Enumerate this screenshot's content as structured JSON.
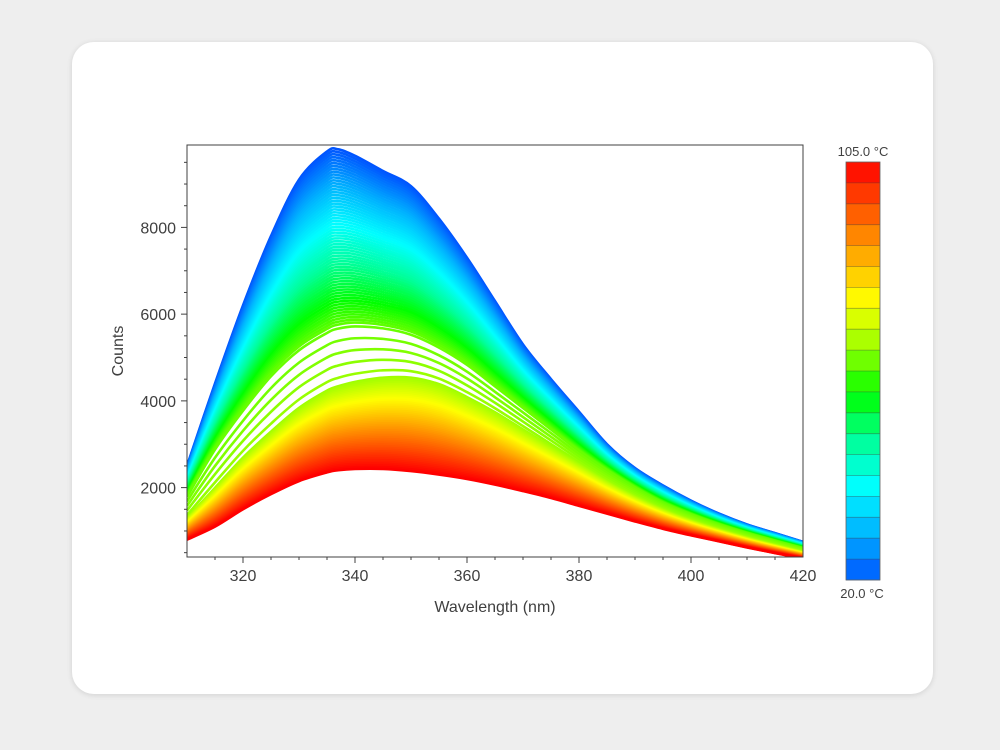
{
  "chart_data": {
    "type": "line",
    "title": "",
    "xlabel": "Wavelength (nm)",
    "ylabel": "Counts",
    "xlim": [
      310,
      420
    ],
    "ylim": [
      400,
      9900
    ],
    "x_ticks": [
      320,
      340,
      360,
      380,
      400,
      420
    ],
    "y_ticks": [
      2000,
      4000,
      6000,
      8000
    ],
    "grid": false,
    "legend": "none",
    "colorbar": {
      "min_label": "20.0 °C",
      "max_label": "105.0 °C",
      "placement": "right",
      "min_temp": 20.0,
      "max_temp": 105.0,
      "segments": 20,
      "colormap": [
        "#0055ff",
        "#00b4ff",
        "#00ffff",
        "#00ff99",
        "#00ff00",
        "#99ff00",
        "#ffff00",
        "#ffaa00",
        "#ff5500",
        "#ff0000"
      ]
    },
    "series_count": 120,
    "spectrum_profile": {
      "x": [
        310,
        315,
        320,
        325,
        330,
        335,
        337,
        340,
        345,
        350,
        355,
        360,
        365,
        370,
        375,
        380,
        385,
        390,
        395,
        400,
        405,
        410,
        415,
        420
      ],
      "y_lowest_temp": [
        2500,
        4400,
        6200,
        7800,
        9100,
        9750,
        9800,
        9650,
        9300,
        8950,
        8200,
        7300,
        6300,
        5300,
        4500,
        3750,
        3000,
        2450,
        2050,
        1700,
        1400,
        1150,
        950,
        750
      ],
      "y_highest_temp": [
        800,
        1100,
        1500,
        1850,
        2150,
        2350,
        2400,
        2430,
        2430,
        2380,
        2300,
        2200,
        2070,
        1920,
        1760,
        1580,
        1400,
        1220,
        1050,
        900,
        760,
        620,
        490,
        370
      ],
      "y_at_transition_low": [
        1800,
        2900,
        3800,
        4600,
        5200,
        5600,
        5700,
        5750,
        5700,
        5550,
        5250,
        4850,
        4350,
        3850,
        3350,
        2850,
        2400,
        2000,
        1650,
        1380,
        1150,
        950,
        770,
        600
      ],
      "y_at_transition_high": [
        1300,
        2000,
        2700,
        3300,
        3850,
        4250,
        4350,
        4450,
        4550,
        4550,
        4400,
        4100,
        3750,
        3350,
        2950,
        2550,
        2150,
        1800,
        1500,
        1250,
        1040,
        850,
        680,
        520
      ]
    }
  }
}
